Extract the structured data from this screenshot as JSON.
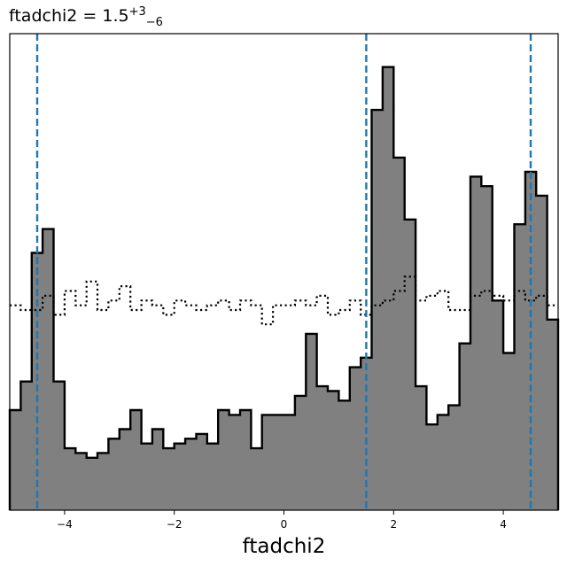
{
  "chart_data": {
    "type": "histogram",
    "title": {
      "prefix": "ftadchi2 = 1.5",
      "sup": "+3",
      "sub": "−6"
    },
    "xlabel": "ftadchi2",
    "ylabel": "",
    "xlim": [
      -5,
      5
    ],
    "ylim": [
      0,
      1.0
    ],
    "x_ticks": [
      -4,
      -2,
      0,
      2,
      4
    ],
    "x_tick_labels": [
      "−4",
      "−2",
      "0",
      "2",
      "4"
    ],
    "y_ticks_visible": false,
    "bin_edges": [
      -5.0,
      -4.8,
      -4.6,
      -4.4,
      -4.2,
      -4.0,
      -3.8,
      -3.6,
      -3.4,
      -3.2,
      -3.0,
      -2.8,
      -2.6,
      -2.4,
      -2.2,
      -2.0,
      -1.8,
      -1.6,
      -1.4,
      -1.2,
      -1.0,
      -0.8,
      -0.6,
      -0.4,
      -0.2,
      0.0,
      0.2,
      0.4,
      0.6,
      0.8,
      1.0,
      1.2,
      1.4,
      1.6,
      1.8,
      2.0,
      2.2,
      2.4,
      2.6,
      2.8,
      3.0,
      3.2,
      3.4,
      3.6,
      3.8,
      4.0,
      4.2,
      4.4,
      4.6,
      4.8,
      5.0
    ],
    "series": [
      {
        "kind": "posterior",
        "style": "filled",
        "fill_color": "#808080",
        "edge_color": "#000000",
        "values": [
          0.21,
          0.27,
          0.54,
          0.59,
          0.27,
          0.13,
          0.12,
          0.11,
          0.12,
          0.15,
          0.17,
          0.21,
          0.14,
          0.17,
          0.13,
          0.14,
          0.15,
          0.16,
          0.14,
          0.21,
          0.2,
          0.21,
          0.13,
          0.2,
          0.2,
          0.2,
          0.24,
          0.37,
          0.26,
          0.25,
          0.23,
          0.3,
          0.32,
          0.84,
          0.93,
          0.74,
          0.61,
          0.26,
          0.18,
          0.2,
          0.22,
          0.35,
          0.7,
          0.68,
          0.44,
          0.33,
          0.6,
          0.71,
          0.66,
          0.4
        ]
      },
      {
        "kind": "prior",
        "style": "dotted",
        "edge_color": "#000000",
        "values": [
          0.43,
          0.42,
          0.42,
          0.45,
          0.41,
          0.46,
          0.43,
          0.48,
          0.42,
          0.44,
          0.47,
          0.42,
          0.44,
          0.43,
          0.41,
          0.44,
          0.43,
          0.42,
          0.43,
          0.44,
          0.42,
          0.44,
          0.43,
          0.39,
          0.43,
          0.43,
          0.44,
          0.43,
          0.45,
          0.41,
          0.42,
          0.44,
          0.41,
          0.43,
          0.44,
          0.46,
          0.49,
          0.44,
          0.45,
          0.46,
          0.42,
          0.42,
          0.45,
          0.46,
          0.45,
          0.44,
          0.46,
          0.44,
          0.45,
          0.43
        ]
      }
    ],
    "vlines": {
      "color": "#1f77b4",
      "style": "dashed",
      "values": [
        -4.5,
        1.5,
        4.5
      ]
    },
    "grid": false,
    "legend": "none"
  }
}
